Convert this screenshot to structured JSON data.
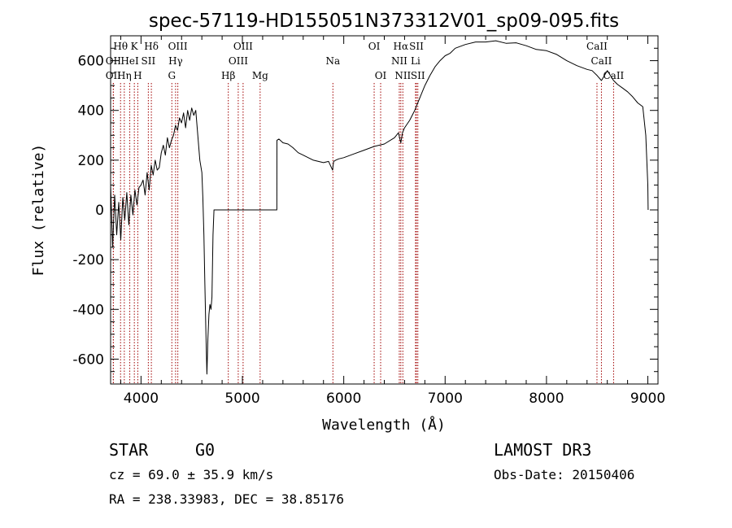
{
  "chart_data": {
    "type": "line",
    "title": "spec-57119-HD155051N373312V01_sp09-095.fits",
    "xlabel": "Wavelength (Å)",
    "ylabel": "Flux (relative)",
    "xlim": [
      3700,
      9100
    ],
    "ylim": [
      -700,
      700
    ],
    "xticks": [
      4000,
      5000,
      6000,
      7000,
      8000,
      9000
    ],
    "yticks": [
      -600,
      -400,
      -200,
      0,
      200,
      400,
      600
    ],
    "series": [
      {
        "name": "spectrum",
        "x": [
          3700,
          3720,
          3740,
          3760,
          3780,
          3800,
          3820,
          3840,
          3860,
          3880,
          3900,
          3920,
          3940,
          3960,
          3980,
          4000,
          4020,
          4040,
          4060,
          4080,
          4100,
          4120,
          4140,
          4160,
          4180,
          4200,
          4220,
          4240,
          4260,
          4280,
          4300,
          4320,
          4340,
          4360,
          4380,
          4400,
          4420,
          4440,
          4460,
          4480,
          4500,
          4520,
          4540,
          4560,
          4580,
          4600,
          4610,
          4620,
          4630,
          4640,
          4650,
          4660,
          4670,
          4680,
          4690,
          4700,
          4710,
          4720,
          5340,
          5341,
          5360,
          5400,
          5450,
          5500,
          5550,
          5600,
          5650,
          5700,
          5750,
          5800,
          5850,
          5890,
          5900,
          5920,
          5950,
          6000,
          6100,
          6200,
          6300,
          6400,
          6500,
          6540,
          6563,
          6580,
          6600,
          6650,
          6700,
          6750,
          6800,
          6850,
          6900,
          6950,
          7000,
          7050,
          7100,
          7200,
          7300,
          7400,
          7500,
          7600,
          7700,
          7800,
          7900,
          8000,
          8100,
          8200,
          8300,
          8400,
          8450,
          8500,
          8542,
          8600,
          8662,
          8700,
          8750,
          8800,
          8850,
          8900,
          8950,
          8980,
          9000,
          9003
        ],
        "y": [
          100,
          -150,
          60,
          -100,
          30,
          -120,
          50,
          -40,
          70,
          -60,
          60,
          -20,
          80,
          20,
          90,
          100,
          120,
          60,
          150,
          80,
          180,
          140,
          200,
          160,
          170,
          230,
          260,
          220,
          290,
          250,
          280,
          300,
          340,
          320,
          370,
          350,
          390,
          330,
          400,
          360,
          410,
          380,
          400,
          300,
          200,
          150,
          50,
          -100,
          -300,
          -500,
          -660,
          -520,
          -420,
          -380,
          -400,
          -350,
          -100,
          0,
          0,
          280,
          285,
          270,
          265,
          250,
          230,
          220,
          210,
          200,
          195,
          190,
          195,
          160,
          195,
          200,
          205,
          210,
          225,
          240,
          255,
          265,
          290,
          310,
          270,
          310,
          330,
          360,
          400,
          450,
          500,
          540,
          575,
          600,
          620,
          630,
          650,
          665,
          675,
          675,
          680,
          670,
          672,
          660,
          645,
          640,
          625,
          600,
          580,
          565,
          560,
          540,
          520,
          560,
          520,
          505,
          490,
          475,
          455,
          430,
          415,
          300,
          100,
          0
        ]
      }
    ],
    "line_markers": [
      {
        "label": "Hθ",
        "wavelength": 3798,
        "row": 0
      },
      {
        "label": "OII",
        "wavelength": 3727,
        "row": 1
      },
      {
        "label": "OII",
        "wavelength": 3727,
        "row": 2
      },
      {
        "label": "Hη",
        "wavelength": 3835,
        "row": 2
      },
      {
        "label": "K",
        "wavelength": 3934,
        "row": 0
      },
      {
        "label": "HeI",
        "wavelength": 3889,
        "row": 1
      },
      {
        "label": "SII",
        "wavelength": 4072,
        "row": 1
      },
      {
        "label": "H",
        "wavelength": 3968,
        "row": 2
      },
      {
        "label": "Hδ",
        "wavelength": 4102,
        "row": 0
      },
      {
        "label": "OIII",
        "wavelength": 4363,
        "row": 0
      },
      {
        "label": "Hγ",
        "wavelength": 4341,
        "row": 1
      },
      {
        "label": "G",
        "wavelength": 4304,
        "row": 2
      },
      {
        "label": "OIII",
        "wavelength": 5007,
        "row": 0
      },
      {
        "label": "OIII",
        "wavelength": 4959,
        "row": 1
      },
      {
        "label": "Hβ",
        "wavelength": 4861,
        "row": 2
      },
      {
        "label": "Mg",
        "wavelength": 5175,
        "row": 2
      },
      {
        "label": "Na",
        "wavelength": 5893,
        "row": 1
      },
      {
        "label": "OI",
        "wavelength": 6300,
        "row": 0
      },
      {
        "label": "OI",
        "wavelength": 6364,
        "row": 2
      },
      {
        "label": "Hα",
        "wavelength": 6563,
        "row": 0
      },
      {
        "label": "SII",
        "wavelength": 6717,
        "row": 0
      },
      {
        "label": "NII",
        "wavelength": 6548,
        "row": 1
      },
      {
        "label": "Li",
        "wavelength": 6708,
        "row": 1
      },
      {
        "label": "NII",
        "wavelength": 6583,
        "row": 2
      },
      {
        "label": "SII",
        "wavelength": 6731,
        "row": 2
      },
      {
        "label": "CaII",
        "wavelength": 8498,
        "row": 0
      },
      {
        "label": "CaII",
        "wavelength": 8542,
        "row": 1
      },
      {
        "label": "CaII",
        "wavelength": 8662,
        "row": 2
      }
    ]
  },
  "info": {
    "object_class": "STAR",
    "subclass": "G0",
    "survey": "LAMOST DR3",
    "cz": "cz = 69.0 ± 35.9 km/s",
    "obs_date": "Obs-Date: 20150406",
    "coords": "RA = 238.33983, DEC =  38.85176"
  },
  "colors": {
    "axis": "#000000",
    "spectrum": "#000000",
    "marker_line": "#a00000"
  }
}
